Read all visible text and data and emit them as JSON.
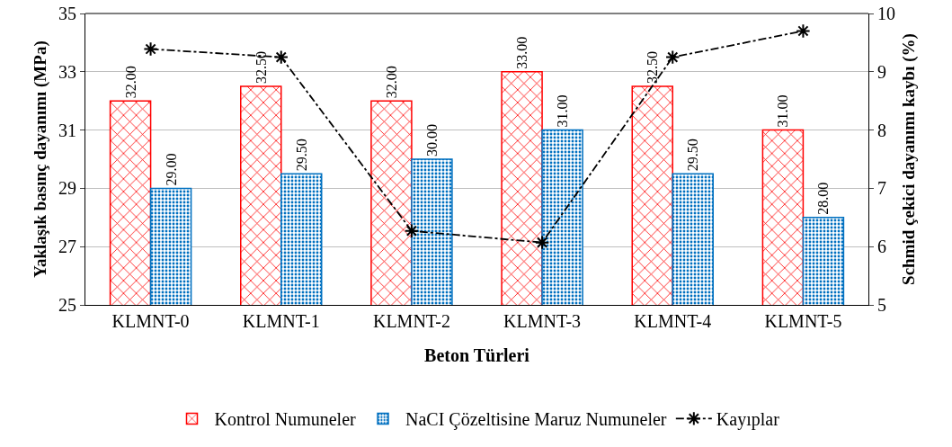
{
  "chart_data": {
    "type": "bar",
    "xlabel": "Beton Türleri",
    "ylabel": "Yaklaşık basınç dayanımı (MPa)",
    "y2label": "Schmid çekici dayanımı kaybı (%)",
    "categories": [
      "KLMNT-0",
      "KLMNT-1",
      "KLMNT-2",
      "KLMNT-3",
      "KLMNT-4",
      "KLMNT-5"
    ],
    "series": [
      {
        "name": "Kontrol Numuneler",
        "color": "#ff0000",
        "values": [
          32,
          32.5,
          32,
          33,
          32.5,
          31
        ],
        "value_labels": [
          "32.00",
          "32.50",
          "32.00",
          "33.00",
          "32.50",
          "31.00"
        ]
      },
      {
        "name": "NaCI Çözeltisine Maruz Numuneler",
        "color": "#0070c0",
        "values": [
          29,
          29.5,
          30,
          31,
          29.5,
          28
        ],
        "value_labels": [
          "29.00",
          "29.50",
          "30.00",
          "31.00",
          "29.50",
          "28.00"
        ]
      },
      {
        "name": "Kayıplar",
        "type": "line",
        "axis": "y2",
        "color": "#000000",
        "marker": "cross",
        "line_style": "dashed",
        "values": [
          9.39,
          9.25,
          6.27,
          6.07,
          9.25,
          9.7
        ]
      }
    ],
    "ylim": [
      25,
      35
    ],
    "yticks": [
      25,
      27,
      29,
      31,
      33,
      35
    ],
    "y2lim": [
      5,
      10
    ],
    "y2ticks": [
      5,
      6,
      7,
      8,
      9,
      10
    ],
    "grid": "y",
    "legend": "bottom"
  }
}
